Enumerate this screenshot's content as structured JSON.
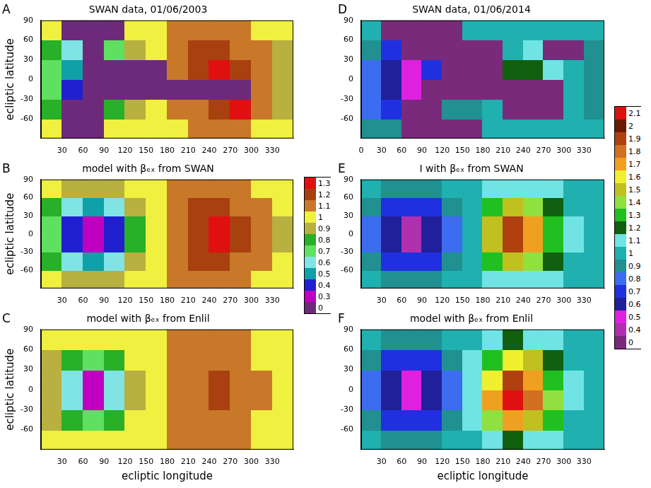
{
  "chart_data": [
    {
      "type": "heatmap",
      "panel": "A",
      "title": "SWAN data, 01/06/2003",
      "ylabel": "ecliptic latitude",
      "xlim": [
        0,
        360
      ],
      "ylim": [
        -90,
        90
      ],
      "xticks": [
        30,
        60,
        90,
        120,
        150,
        180,
        210,
        240,
        270,
        300,
        330
      ],
      "yticks": [
        -60,
        -30,
        0,
        30,
        60,
        90
      ],
      "grid": false,
      "x": [
        15,
        45,
        75,
        105,
        135,
        165,
        195,
        225,
        255,
        285,
        315,
        345
      ],
      "y": [
        -75,
        -45,
        -15,
        15,
        45,
        75
      ],
      "z": [
        [
          1.0,
          0,
          0,
          1.0,
          1.0,
          1.05,
          1.05,
          1.1,
          1.1,
          1.1,
          1.05,
          1.0
        ],
        [
          0.85,
          0,
          0,
          0.8,
          0.95,
          1.05,
          1.1,
          1.15,
          1.2,
          1.3,
          1.1,
          0.95
        ],
        [
          0.75,
          0.45,
          0,
          0,
          0,
          0,
          0,
          0,
          0,
          0,
          1.1,
          0.95
        ],
        [
          0.75,
          0.5,
          0,
          0,
          0,
          0,
          1.15,
          1.25,
          1.3,
          1.2,
          1.1,
          0.95
        ],
        [
          0.85,
          0.6,
          0,
          0.7,
          0.95,
          1.05,
          1.15,
          1.2,
          1.2,
          1.15,
          1.1,
          0.95
        ],
        [
          1.0,
          0,
          0,
          0,
          1.0,
          1.05,
          1.1,
          1.1,
          1.1,
          1.1,
          1.05,
          1.0
        ]
      ]
    },
    {
      "type": "heatmap",
      "panel": "B",
      "title": "model with βₑₓ from SWAN",
      "ylabel": "ecliptic latitude",
      "xlim": [
        0,
        360
      ],
      "ylim": [
        -90,
        90
      ],
      "xticks": [
        30,
        60,
        90,
        120,
        150,
        180,
        210,
        240,
        270,
        300,
        330
      ],
      "yticks": [
        -60,
        -30,
        0,
        30,
        60,
        90
      ],
      "grid": false,
      "x": [
        15,
        45,
        75,
        105,
        135,
        165,
        195,
        225,
        255,
        285,
        315,
        345
      ],
      "y": [
        -75,
        -45,
        -15,
        15,
        45,
        75
      ],
      "z": [
        [
          1.0,
          0.95,
          0.9,
          0.95,
          1.0,
          1.05,
          1.1,
          1.1,
          1.1,
          1.1,
          1.05,
          1.0
        ],
        [
          0.85,
          0.6,
          0.55,
          0.65,
          0.9,
          1.05,
          1.12,
          1.2,
          1.2,
          1.15,
          1.1,
          1.0
        ],
        [
          0.7,
          0.4,
          0.3,
          0.45,
          0.8,
          1.05,
          1.15,
          1.25,
          1.3,
          1.22,
          1.1,
          0.95
        ],
        [
          0.7,
          0.4,
          0.3,
          0.45,
          0.8,
          1.05,
          1.15,
          1.25,
          1.3,
          1.22,
          1.1,
          0.95
        ],
        [
          0.85,
          0.6,
          0.55,
          0.65,
          0.9,
          1.05,
          1.12,
          1.2,
          1.2,
          1.15,
          1.1,
          1.0
        ],
        [
          1.0,
          0.95,
          0.9,
          0.95,
          1.0,
          1.05,
          1.1,
          1.1,
          1.1,
          1.1,
          1.05,
          1.0
        ]
      ]
    },
    {
      "type": "heatmap",
      "panel": "C",
      "title": "model with βₑₓ from Enlil",
      "xlabel": "ecliptic longitude",
      "ylabel": "ecliptic latitude",
      "xlim": [
        0,
        360
      ],
      "ylim": [
        -90,
        90
      ],
      "xticks": [
        30,
        60,
        90,
        120,
        150,
        180,
        210,
        240,
        270,
        300,
        330
      ],
      "yticks": [
        -60,
        -30,
        0,
        30,
        60,
        90
      ],
      "grid": false,
      "x": [
        15,
        45,
        75,
        105,
        135,
        165,
        195,
        225,
        255,
        285,
        315,
        345
      ],
      "y": [
        -75,
        -45,
        -15,
        15,
        45,
        75
      ],
      "z": [
        [
          1.0,
          1.0,
          1.0,
          1.0,
          1.05,
          1.05,
          1.1,
          1.1,
          1.1,
          1.1,
          1.05,
          1.0
        ],
        [
          0.95,
          0.8,
          0.7,
          0.8,
          1.0,
          1.05,
          1.1,
          1.15,
          1.15,
          1.12,
          1.08,
          1.02
        ],
        [
          0.9,
          0.6,
          0.35,
          0.6,
          0.95,
          1.05,
          1.12,
          1.18,
          1.2,
          1.15,
          1.1,
          1.0
        ],
        [
          0.9,
          0.6,
          0.35,
          0.6,
          0.95,
          1.05,
          1.12,
          1.18,
          1.2,
          1.15,
          1.1,
          1.0
        ],
        [
          0.95,
          0.8,
          0.7,
          0.8,
          1.0,
          1.05,
          1.1,
          1.15,
          1.15,
          1.12,
          1.08,
          1.02
        ],
        [
          1.0,
          1.0,
          1.0,
          1.0,
          1.05,
          1.05,
          1.1,
          1.1,
          1.1,
          1.1,
          1.05,
          1.0
        ]
      ]
    },
    {
      "type": "heatmap",
      "panel": "D",
      "title": "SWAN data, 01/06/2014",
      "xlim": [
        0,
        360
      ],
      "ylim": [
        -90,
        90
      ],
      "xticks": [
        0,
        30,
        60,
        90,
        120,
        150,
        180,
        210,
        240,
        270,
        300,
        330
      ],
      "yticks": [
        -60,
        -30,
        0,
        30,
        60,
        90
      ],
      "grid": false,
      "x": [
        15,
        45,
        75,
        105,
        135,
        165,
        195,
        225,
        255,
        285,
        315,
        345
      ],
      "y": [
        -75,
        -45,
        -15,
        15,
        45,
        75
      ],
      "z": [
        [
          0.95,
          0.9,
          0,
          0,
          0,
          0,
          1.0,
          1.0,
          1.0,
          1.0,
          1.0,
          1.0
        ],
        [
          0.85,
          0.7,
          0,
          0,
          0.9,
          0.95,
          1.0,
          0,
          0,
          0,
          1.0,
          0.95
        ],
        [
          0.8,
          0.6,
          0.5,
          0,
          0,
          0,
          0,
          0,
          0,
          0,
          1.0,
          0.95
        ],
        [
          0.8,
          0.6,
          0.5,
          0.7,
          0,
          0,
          0,
          1.2,
          1.2,
          1.1,
          1.0,
          0.95
        ],
        [
          0.9,
          0.7,
          0,
          0,
          0,
          0,
          0,
          1.05,
          1.1,
          0,
          0,
          0.95
        ],
        [
          1.0,
          0,
          0,
          0,
          0,
          1.0,
          1.0,
          1.0,
          1.0,
          1.0,
          1.0,
          1.0
        ]
      ]
    },
    {
      "type": "heatmap",
      "panel": "E",
      "title": "I with βₑₓ from SWAN",
      "xlim": [
        0,
        360
      ],
      "ylim": [
        -90,
        90
      ],
      "xticks": [
        30,
        60,
        90,
        120,
        150,
        180,
        210,
        240,
        270,
        300,
        330
      ],
      "yticks": [
        -60,
        -30,
        0,
        30,
        60,
        90
      ],
      "grid": false,
      "x": [
        15,
        45,
        75,
        105,
        135,
        165,
        195,
        225,
        255,
        285,
        315,
        345
      ],
      "y": [
        -75,
        -45,
        -15,
        15,
        45,
        75
      ],
      "z": [
        [
          1.0,
          0.95,
          0.95,
          0.95,
          1.0,
          1.05,
          1.1,
          1.15,
          1.1,
          1.1,
          1.05,
          1.0
        ],
        [
          0.9,
          0.75,
          0.7,
          0.75,
          0.9,
          1.05,
          1.3,
          1.5,
          1.4,
          1.2,
          1.05,
          1.0
        ],
        [
          0.85,
          0.6,
          0.45,
          0.6,
          0.85,
          1.05,
          1.5,
          1.95,
          1.7,
          1.35,
          1.1,
          1.0
        ],
        [
          0.85,
          0.6,
          0.45,
          0.6,
          0.85,
          1.05,
          1.5,
          1.95,
          1.7,
          1.35,
          1.1,
          1.0
        ],
        [
          0.9,
          0.75,
          0.7,
          0.75,
          0.9,
          1.05,
          1.3,
          1.5,
          1.4,
          1.2,
          1.05,
          1.0
        ],
        [
          1.0,
          0.95,
          0.95,
          0.95,
          1.0,
          1.05,
          1.1,
          1.15,
          1.1,
          1.1,
          1.05,
          1.0
        ]
      ]
    },
    {
      "type": "heatmap",
      "panel": "F",
      "title": "model with βₑₓ from Enlil",
      "xlabel": "ecliptic longitude",
      "xlim": [
        0,
        360
      ],
      "ylim": [
        -90,
        90
      ],
      "xticks": [
        30,
        60,
        90,
        120,
        150,
        180,
        210,
        240,
        270,
        300,
        330
      ],
      "yticks": [
        -60,
        -30,
        0,
        30,
        60,
        90
      ],
      "grid": false,
      "x": [
        15,
        45,
        75,
        105,
        135,
        165,
        195,
        225,
        255,
        285,
        315,
        345
      ],
      "y": [
        -75,
        -45,
        -15,
        15,
        45,
        75
      ],
      "z": [
        [
          1.0,
          0.95,
          0.95,
          0.95,
          1.0,
          1.05,
          1.1,
          1.2,
          1.15,
          1.1,
          1.05,
          1.0
        ],
        [
          0.9,
          0.75,
          0.7,
          0.75,
          0.9,
          1.1,
          1.4,
          1.7,
          1.55,
          1.3,
          1.05,
          1.0
        ],
        [
          0.85,
          0.6,
          0.5,
          0.6,
          0.85,
          1.15,
          1.7,
          2.1,
          1.85,
          1.4,
          1.1,
          1.0
        ],
        [
          0.85,
          0.6,
          0.5,
          0.6,
          0.85,
          1.15,
          1.6,
          1.95,
          1.75,
          1.35,
          1.1,
          1.0
        ],
        [
          0.9,
          0.75,
          0.7,
          0.75,
          0.9,
          1.1,
          1.35,
          1.6,
          1.5,
          1.25,
          1.05,
          1.0
        ],
        [
          1.0,
          0.95,
          0.95,
          0.95,
          1.0,
          1.05,
          1.1,
          1.2,
          1.15,
          1.1,
          1.05,
          1.0
        ]
      ]
    }
  ],
  "colorbars": [
    {
      "ticks": [
        0,
        0.3,
        0.4,
        0.5,
        0.6,
        0.7,
        0.8,
        0.9,
        1,
        1.1,
        1.2,
        1.3
      ],
      "colors": [
        "#6e2a7a",
        "#c000c0",
        "#2020d0",
        "#10a0a8",
        "#80e4e4",
        "#60e060",
        "#28b028",
        "#b8b040",
        "#f0f040",
        "#c87828",
        "#a84010",
        "#e01010"
      ]
    },
    {
      "ticks": [
        0,
        0.4,
        0.5,
        0.6,
        0.7,
        0.8,
        0.9,
        1,
        1.1,
        1.2,
        1.3,
        1.4,
        1.5,
        1.6,
        1.7,
        1.8,
        1.9,
        2,
        2.1
      ],
      "colors": [
        "#7a2a7a",
        "#b030b0",
        "#e020e0",
        "#20209a",
        "#2030e0",
        "#3c6cf0",
        "#209090",
        "#20b0b0",
        "#70e4e4",
        "#106010",
        "#20c020",
        "#90e040",
        "#c0c020",
        "#f0f030",
        "#f0a020",
        "#d07020",
        "#b04010",
        "#6a1a00",
        "#e01010"
      ]
    }
  ]
}
